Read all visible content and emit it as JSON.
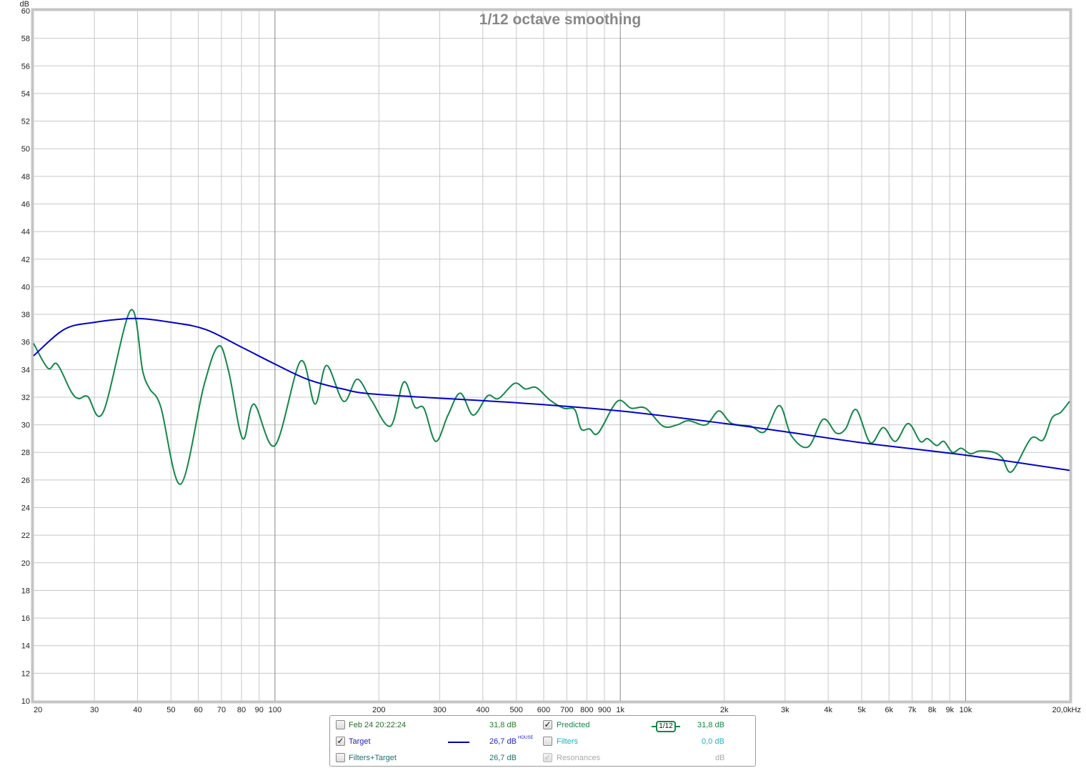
{
  "chart_data": {
    "type": "line",
    "title": "1/12 octave smoothing",
    "ylabel": "dB",
    "xscale": "log",
    "xlim": [
      20,
      20000
    ],
    "ylim": [
      10,
      60
    ],
    "grid": true,
    "y_ticks": [
      "10",
      "12",
      "14",
      "16",
      "18",
      "20",
      "22",
      "24",
      "26",
      "28",
      "30",
      "32",
      "34",
      "36",
      "38",
      "40",
      "42",
      "44",
      "46",
      "48",
      "50",
      "52",
      "54",
      "56",
      "58",
      "60"
    ],
    "x_ticks": [
      {
        "f": 20,
        "label": "20"
      },
      {
        "f": 30,
        "label": "30"
      },
      {
        "f": 40,
        "label": "40"
      },
      {
        "f": 50,
        "label": "50"
      },
      {
        "f": 60,
        "label": "60"
      },
      {
        "f": 70,
        "label": "70"
      },
      {
        "f": 80,
        "label": "80"
      },
      {
        "f": 90,
        "label": "90"
      },
      {
        "f": 100,
        "label": "100"
      },
      {
        "f": 200,
        "label": "200"
      },
      {
        "f": 300,
        "label": "300"
      },
      {
        "f": 400,
        "label": "400"
      },
      {
        "f": 500,
        "label": "500"
      },
      {
        "f": 600,
        "label": "600"
      },
      {
        "f": 700,
        "label": "700"
      },
      {
        "f": 800,
        "label": "800"
      },
      {
        "f": 900,
        "label": "900"
      },
      {
        "f": 1000,
        "label": "1k"
      },
      {
        "f": 2000,
        "label": "2k"
      },
      {
        "f": 3000,
        "label": "3k"
      },
      {
        "f": 4000,
        "label": "4k"
      },
      {
        "f": 5000,
        "label": "5k"
      },
      {
        "f": 6000,
        "label": "6k"
      },
      {
        "f": 7000,
        "label": "7k"
      },
      {
        "f": 8000,
        "label": "8k"
      },
      {
        "f": 9000,
        "label": "9k"
      },
      {
        "f": 10000,
        "label": "10k"
      },
      {
        "f": 20000,
        "label": "20,0kHz"
      }
    ],
    "series": [
      {
        "name": "Predicted",
        "color": "#12874a",
        "points": [
          [
            20,
            35.9
          ],
          [
            22,
            34.1
          ],
          [
            23.4,
            34.4
          ],
          [
            25.7,
            32.4
          ],
          [
            27,
            31.9
          ],
          [
            28.7,
            32.05
          ],
          [
            31.8,
            30.9
          ],
          [
            38.2,
            38.3
          ],
          [
            41.4,
            33.9
          ],
          [
            43.4,
            32.6
          ],
          [
            46.7,
            31.3
          ],
          [
            53.3,
            25.7
          ],
          [
            62.2,
            32.8
          ],
          [
            68.6,
            35.7
          ],
          [
            73.4,
            33.9
          ],
          [
            80.6,
            29.0
          ],
          [
            86.9,
            31.5
          ],
          [
            100,
            28.5
          ],
          [
            118.6,
            34.6
          ],
          [
            130.6,
            31.5
          ],
          [
            141,
            34.3
          ],
          [
            158,
            31.7
          ],
          [
            173,
            33.3
          ],
          [
            190,
            31.8
          ],
          [
            216,
            29.9
          ],
          [
            236,
            33.1
          ],
          [
            254,
            31.3
          ],
          [
            270,
            31.2
          ],
          [
            292,
            28.8
          ],
          [
            317,
            30.7
          ],
          [
            344,
            32.3
          ],
          [
            375,
            30.7
          ],
          [
            413,
            32.1
          ],
          [
            444,
            31.9
          ],
          [
            494,
            33.0
          ],
          [
            531,
            32.6
          ],
          [
            571,
            32.7
          ],
          [
            625,
            31.8
          ],
          [
            686,
            31.2
          ],
          [
            738,
            31.1
          ],
          [
            770,
            29.7
          ],
          [
            815,
            29.7
          ],
          [
            863,
            29.4
          ],
          [
            980,
            31.7
          ],
          [
            1076,
            31.2
          ],
          [
            1184,
            31.2
          ],
          [
            1330,
            29.9
          ],
          [
            1462,
            30.0
          ],
          [
            1575,
            30.3
          ],
          [
            1770,
            30.0
          ],
          [
            1930,
            31.0
          ],
          [
            2100,
            30.1
          ],
          [
            2385,
            29.9
          ],
          [
            2620,
            29.5
          ],
          [
            2890,
            31.4
          ],
          [
            3130,
            29.2
          ],
          [
            3500,
            28.4
          ],
          [
            3870,
            30.4
          ],
          [
            4220,
            29.4
          ],
          [
            4490,
            29.7
          ],
          [
            4820,
            31.1
          ],
          [
            5300,
            28.7
          ],
          [
            5770,
            29.8
          ],
          [
            6260,
            28.8
          ],
          [
            6820,
            30.1
          ],
          [
            7390,
            28.8
          ],
          [
            7750,
            29.0
          ],
          [
            8240,
            28.5
          ],
          [
            8650,
            28.8
          ],
          [
            9160,
            28.0
          ],
          [
            9700,
            28.3
          ],
          [
            10320,
            27.9
          ],
          [
            10970,
            28.1
          ],
          [
            12070,
            28.0
          ],
          [
            12770,
            27.6
          ],
          [
            13590,
            26.6
          ],
          [
            15450,
            29.0
          ],
          [
            16750,
            28.9
          ],
          [
            17800,
            30.5
          ],
          [
            18850,
            30.9
          ],
          [
            20000,
            31.7
          ]
        ]
      },
      {
        "name": "Target",
        "color": "#0000cc",
        "points": [
          [
            20,
            35.0
          ],
          [
            24.5,
            36.9
          ],
          [
            29.6,
            37.4
          ],
          [
            39.2,
            37.7
          ],
          [
            50.8,
            37.4
          ],
          [
            63.1,
            36.9
          ],
          [
            80.4,
            35.6
          ],
          [
            100,
            34.4
          ],
          [
            124,
            33.3
          ],
          [
            157,
            32.6
          ],
          [
            200,
            32.2
          ],
          [
            500,
            31.6
          ],
          [
            1000,
            31.0
          ],
          [
            2000,
            30.1
          ],
          [
            3000,
            29.5
          ],
          [
            5000,
            28.7
          ],
          [
            10000,
            27.8
          ],
          [
            20000,
            26.7
          ]
        ]
      }
    ]
  },
  "legend": {
    "rows": [
      {
        "checked": false,
        "label": "Feb 24 20:22:24",
        "value": "31,8 dB"
      },
      {
        "checked": true,
        "label": "Target",
        "value": "26,7 dB",
        "sup": "HOUSE"
      },
      {
        "checked": false,
        "label": "Filters+Target",
        "value": "26,7 dB"
      }
    ],
    "right_rows": [
      {
        "checked": true,
        "label": "Predicted",
        "value": "31,8 dB"
      },
      {
        "checked": false,
        "label": "Filters",
        "value": "0,0 dB"
      },
      {
        "checked": true,
        "disabled": true,
        "label": "Resonances",
        "value": "dB"
      }
    ],
    "smoothing_badge": "1/12",
    "check_mark": "✓"
  }
}
